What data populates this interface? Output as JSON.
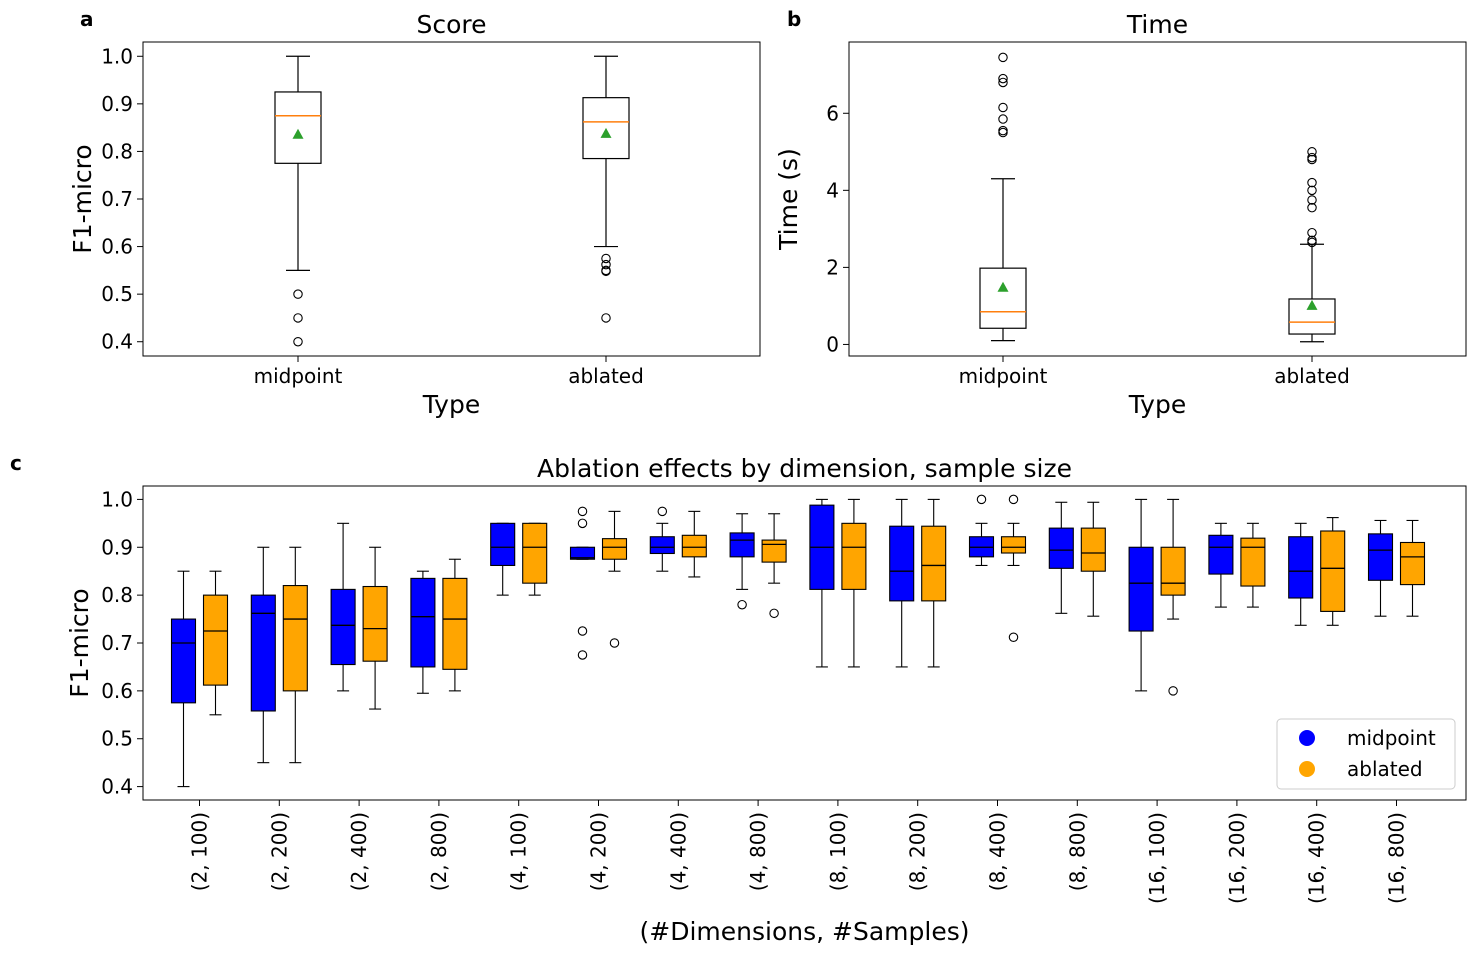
{
  "panel_labels": {
    "a": "a",
    "b": "b",
    "c": "c"
  },
  "colors": {
    "midpoint": "#0000ff",
    "ablated": "#ffa500",
    "median_top": "#ff7f0e",
    "mean_marker": "#2ca02c"
  },
  "chart_data": [
    {
      "id": "a",
      "type": "box",
      "title": "Score",
      "xlabel": "Type",
      "ylabel": "F1-micro",
      "categories": [
        "midpoint",
        "ablated"
      ],
      "ylim": [
        0.37,
        1.03
      ],
      "yticks": [
        "0.4",
        "0.5",
        "0.6",
        "0.7",
        "0.8",
        "0.9",
        "1.0"
      ],
      "boxes": [
        {
          "label": "midpoint",
          "whislo": 0.55,
          "q1": 0.775,
          "med": 0.875,
          "q3": 0.925,
          "whishi": 1.0,
          "mean": 0.835,
          "fliers": [
            0.5,
            0.45,
            0.4
          ]
        },
        {
          "label": "ablated",
          "whislo": 0.6,
          "q1": 0.785,
          "med": 0.862,
          "q3": 0.913,
          "whishi": 1.0,
          "mean": 0.837,
          "fliers": [
            0.575,
            0.562,
            0.55,
            0.548,
            0.45
          ]
        }
      ]
    },
    {
      "id": "b",
      "type": "box",
      "title": "Time",
      "xlabel": "Type",
      "ylabel": "Time (s)",
      "categories": [
        "midpoint",
        "ablated"
      ],
      "ylim": [
        -0.3,
        7.85
      ],
      "yticks": [
        "0",
        "2",
        "4",
        "6"
      ],
      "boxes": [
        {
          "label": "midpoint",
          "whislo": 0.1,
          "q1": 0.42,
          "med": 0.85,
          "q3": 1.98,
          "whishi": 4.3,
          "mean": 1.47,
          "fliers": [
            5.5,
            5.55,
            5.85,
            6.15,
            6.8,
            6.9,
            7.45
          ]
        },
        {
          "label": "ablated",
          "whislo": 0.07,
          "q1": 0.27,
          "med": 0.58,
          "q3": 1.18,
          "whishi": 2.6,
          "mean": 1.0,
          "fliers": [
            2.65,
            2.7,
            2.9,
            3.55,
            3.75,
            4.0,
            4.2,
            4.8,
            4.85,
            5.0
          ]
        }
      ]
    },
    {
      "id": "c",
      "type": "grouped-box",
      "title": "Ablation effects by dimension, sample size",
      "xlabel": "(#Dimensions, #Samples)",
      "ylabel": "F1-micro",
      "ylim": [
        0.372,
        1.028
      ],
      "yticks": [
        "0.4",
        "0.5",
        "0.6",
        "0.7",
        "0.8",
        "0.9",
        "1.0"
      ],
      "categories": [
        "(2, 100)",
        "(2, 200)",
        "(2, 400)",
        "(2, 800)",
        "(4, 100)",
        "(4, 200)",
        "(4, 400)",
        "(4, 800)",
        "(8, 100)",
        "(8, 200)",
        "(8, 400)",
        "(8, 800)",
        "(16, 100)",
        "(16, 200)",
        "(16, 400)",
        "(16, 800)"
      ],
      "legend": {
        "position": "lower-right",
        "entries": [
          "midpoint",
          "ablated"
        ]
      },
      "series": [
        {
          "name": "midpoint",
          "boxes": [
            {
              "whislo": 0.4,
              "q1": 0.575,
              "med": 0.7,
              "q3": 0.75,
              "whishi": 0.85,
              "fliers": []
            },
            {
              "whislo": 0.45,
              "q1": 0.558,
              "med": 0.762,
              "q3": 0.8,
              "whishi": 0.9,
              "fliers": []
            },
            {
              "whislo": 0.6,
              "q1": 0.655,
              "med": 0.737,
              "q3": 0.812,
              "whishi": 0.95,
              "fliers": []
            },
            {
              "whislo": 0.595,
              "q1": 0.65,
              "med": 0.755,
              "q3": 0.835,
              "whishi": 0.85,
              "fliers": []
            },
            {
              "whislo": 0.8,
              "q1": 0.862,
              "med": 0.9,
              "q3": 0.95,
              "whishi": 0.95,
              "fliers": []
            },
            {
              "whislo": 0.875,
              "q1": 0.875,
              "med": 0.878,
              "q3": 0.9,
              "whishi": 0.9,
              "fliers": [
                0.975,
                0.95,
                0.725,
                0.675
              ]
            },
            {
              "whislo": 0.85,
              "q1": 0.887,
              "med": 0.9,
              "q3": 0.922,
              "whishi": 0.95,
              "fliers": [
                0.975
              ]
            },
            {
              "whislo": 0.812,
              "q1": 0.88,
              "med": 0.915,
              "q3": 0.93,
              "whishi": 0.97,
              "fliers": [
                0.78
              ]
            },
            {
              "whislo": 0.65,
              "q1": 0.812,
              "med": 0.9,
              "q3": 0.988,
              "whishi": 1.0,
              "fliers": []
            },
            {
              "whislo": 0.65,
              "q1": 0.788,
              "med": 0.85,
              "q3": 0.944,
              "whishi": 1.0,
              "fliers": []
            },
            {
              "whislo": 0.862,
              "q1": 0.88,
              "med": 0.9,
              "q3": 0.922,
              "whishi": 0.95,
              "fliers": [
                1.0
              ]
            },
            {
              "whislo": 0.762,
              "q1": 0.856,
              "med": 0.894,
              "q3": 0.94,
              "whishi": 0.994,
              "fliers": []
            },
            {
              "whislo": 0.6,
              "q1": 0.725,
              "med": 0.825,
              "q3": 0.9,
              "whishi": 1.0,
              "fliers": []
            },
            {
              "whislo": 0.775,
              "q1": 0.844,
              "med": 0.9,
              "q3": 0.925,
              "whishi": 0.95,
              "fliers": []
            },
            {
              "whislo": 0.737,
              "q1": 0.794,
              "med": 0.85,
              "q3": 0.922,
              "whishi": 0.95,
              "fliers": []
            },
            {
              "whislo": 0.756,
              "q1": 0.831,
              "med": 0.894,
              "q3": 0.928,
              "whishi": 0.956,
              "fliers": []
            }
          ]
        },
        {
          "name": "ablated",
          "boxes": [
            {
              "whislo": 0.55,
              "q1": 0.612,
              "med": 0.725,
              "q3": 0.8,
              "whishi": 0.85,
              "fliers": []
            },
            {
              "whislo": 0.45,
              "q1": 0.6,
              "med": 0.75,
              "q3": 0.82,
              "whishi": 0.9,
              "fliers": []
            },
            {
              "whislo": 0.562,
              "q1": 0.662,
              "med": 0.73,
              "q3": 0.818,
              "whishi": 0.9,
              "fliers": []
            },
            {
              "whislo": 0.6,
              "q1": 0.645,
              "med": 0.75,
              "q3": 0.835,
              "whishi": 0.875,
              "fliers": []
            },
            {
              "whislo": 0.8,
              "q1": 0.825,
              "med": 0.9,
              "q3": 0.95,
              "whishi": 0.95,
              "fliers": []
            },
            {
              "whislo": 0.85,
              "q1": 0.875,
              "med": 0.9,
              "q3": 0.918,
              "whishi": 0.975,
              "fliers": [
                0.7
              ]
            },
            {
              "whislo": 0.838,
              "q1": 0.88,
              "med": 0.9,
              "q3": 0.925,
              "whishi": 0.975,
              "fliers": []
            },
            {
              "whislo": 0.825,
              "q1": 0.869,
              "med": 0.906,
              "q3": 0.915,
              "whishi": 0.97,
              "fliers": [
                0.762
              ]
            },
            {
              "whislo": 0.65,
              "q1": 0.812,
              "med": 0.9,
              "q3": 0.95,
              "whishi": 1.0,
              "fliers": []
            },
            {
              "whislo": 0.65,
              "q1": 0.788,
              "med": 0.862,
              "q3": 0.944,
              "whishi": 1.0,
              "fliers": []
            },
            {
              "whislo": 0.862,
              "q1": 0.888,
              "med": 0.9,
              "q3": 0.922,
              "whishi": 0.95,
              "fliers": [
                1.0,
                0.712
              ]
            },
            {
              "whislo": 0.756,
              "q1": 0.85,
              "med": 0.888,
              "q3": 0.94,
              "whishi": 0.994,
              "fliers": []
            },
            {
              "whislo": 0.75,
              "q1": 0.8,
              "med": 0.825,
              "q3": 0.9,
              "whishi": 1.0,
              "fliers": [
                0.6
              ]
            },
            {
              "whislo": 0.775,
              "q1": 0.819,
              "med": 0.9,
              "q3": 0.919,
              "whishi": 0.95,
              "fliers": []
            },
            {
              "whislo": 0.737,
              "q1": 0.766,
              "med": 0.856,
              "q3": 0.934,
              "whishi": 0.962,
              "fliers": []
            },
            {
              "whislo": 0.756,
              "q1": 0.822,
              "med": 0.88,
              "q3": 0.91,
              "whishi": 0.956,
              "fliers": []
            }
          ]
        }
      ]
    }
  ]
}
